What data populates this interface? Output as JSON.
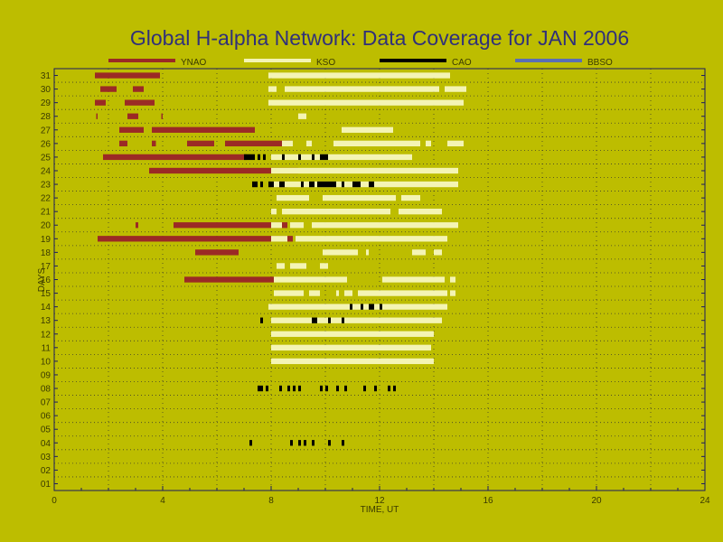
{
  "chart_data": {
    "type": "bar",
    "subtype": "timeline-coverage",
    "title": "Global H-alpha Network: Data Coverage for JAN 2006",
    "xlabel": "TIME, UT",
    "ylabel": "DAYS",
    "xlim": [
      0,
      24
    ],
    "xticks": [
      0,
      4,
      8,
      12,
      16,
      20,
      24
    ],
    "xtick_labels": [
      "0",
      "4",
      "8",
      "12",
      "16",
      "20",
      "24"
    ],
    "days": [
      "01",
      "02",
      "03",
      "04",
      "05",
      "06",
      "07",
      "08",
      "09",
      "10",
      "11",
      "12",
      "13",
      "14",
      "15",
      "16",
      "17",
      "18",
      "19",
      "20",
      "21",
      "22",
      "23",
      "24",
      "25",
      "26",
      "27",
      "28",
      "29",
      "30",
      "31"
    ],
    "grid": "dotted",
    "legend_position": "top",
    "colors": {
      "background": "#bdbd00",
      "axis": "#1c1c60",
      "grid": "#40402a",
      "title": "#30307a"
    },
    "series": [
      {
        "name": "YNAO",
        "color": "#9b2a25",
        "intervals": {
          "31": [
            [
              1.5,
              3.9
            ]
          ],
          "30": [
            [
              1.7,
              2.3
            ],
            [
              2.9,
              3.3
            ]
          ],
          "29": [
            [
              1.5,
              1.9
            ],
            [
              2.6,
              3.7
            ]
          ],
          "28": [
            [
              1.55,
              1.6
            ],
            [
              2.7,
              3.1
            ],
            [
              3.95,
              4.0
            ]
          ],
          "27": [
            [
              2.4,
              3.3
            ],
            [
              3.6,
              7.4
            ]
          ],
          "26": [
            [
              2.4,
              2.7
            ],
            [
              3.6,
              3.75
            ],
            [
              4.9,
              5.9
            ],
            [
              6.3,
              8.8
            ]
          ],
          "25": [
            [
              1.8,
              7.1
            ]
          ],
          "24": [
            [
              3.5,
              9.0
            ]
          ],
          "23": [
            [
              8.2,
              8.6
            ]
          ],
          "20": [
            [
              3.0,
              3.1
            ],
            [
              4.4,
              8.6
            ]
          ],
          "19": [
            [
              1.6,
              8.8
            ]
          ],
          "18": [
            [
              5.2,
              6.8
            ]
          ],
          "16": [
            [
              4.8,
              8.1
            ]
          ]
        }
      },
      {
        "name": "KSO",
        "color": "#f4f4b4",
        "intervals": {
          "31": [
            [
              7.9,
              14.6
            ]
          ],
          "30": [
            [
              7.9,
              8.2
            ],
            [
              8.5,
              14.2
            ],
            [
              14.4,
              15.2
            ]
          ],
          "29": [
            [
              7.9,
              15.1
            ]
          ],
          "28": [
            [
              9.0,
              9.3
            ]
          ],
          "27": [
            [
              10.6,
              12.5
            ]
          ],
          "26": [
            [
              8.4,
              8.8
            ],
            [
              9.3,
              9.5
            ],
            [
              10.3,
              13.5
            ],
            [
              13.7,
              13.9
            ],
            [
              14.5,
              15.1
            ]
          ],
          "25": [
            [
              8.0,
              13.2
            ]
          ],
          "24": [
            [
              8.0,
              14.9
            ]
          ],
          "23": [
            [
              8.0,
              14.9
            ]
          ],
          "22": [
            [
              8.2,
              9.4
            ],
            [
              9.9,
              12.6
            ],
            [
              12.8,
              13.5
            ]
          ],
          "21": [
            [
              8.0,
              8.2
            ],
            [
              8.4,
              12.4
            ],
            [
              12.7,
              14.3
            ]
          ],
          "20": [
            [
              8.0,
              8.4
            ],
            [
              8.7,
              9.2
            ],
            [
              9.5,
              14.9
            ]
          ],
          "19": [
            [
              8.0,
              8.6
            ],
            [
              8.9,
              14.5
            ]
          ],
          "18": [
            [
              9.9,
              11.2
            ],
            [
              11.5,
              11.6
            ],
            [
              13.2,
              13.7
            ],
            [
              14.0,
              14.3
            ]
          ],
          "17": [
            [
              8.2,
              8.5
            ],
            [
              8.7,
              9.3
            ],
            [
              9.8,
              10.1
            ]
          ],
          "16": [
            [
              8.1,
              10.8
            ],
            [
              12.1,
              14.4
            ],
            [
              14.6,
              14.8
            ]
          ],
          "15": [
            [
              8.1,
              9.2
            ],
            [
              9.4,
              9.8
            ],
            [
              10.4,
              10.5
            ],
            [
              10.7,
              11.0
            ],
            [
              11.2,
              14.5
            ],
            [
              14.6,
              14.8
            ]
          ],
          "14": [
            [
              7.9,
              14.5
            ]
          ],
          "13": [
            [
              8.0,
              14.3
            ]
          ],
          "12": [
            [
              8.0,
              14.0
            ]
          ],
          "11": [
            [
              8.0,
              13.9
            ]
          ],
          "10": [
            [
              8.0,
              14.0
            ]
          ]
        }
      },
      {
        "name": "CAO",
        "color": "#000000",
        "intervals": {
          "25": [
            [
              7.0,
              7.4
            ],
            [
              7.5,
              7.6
            ],
            [
              7.7,
              7.8
            ],
            [
              8.4,
              8.5
            ],
            [
              9.0,
              9.1
            ],
            [
              9.5,
              9.6
            ],
            [
              9.8,
              10.1
            ]
          ],
          "23": [
            [
              7.3,
              7.5
            ],
            [
              7.6,
              7.7
            ],
            [
              7.9,
              8.1
            ],
            [
              8.3,
              8.5
            ],
            [
              9.1,
              9.2
            ],
            [
              9.4,
              9.6
            ],
            [
              9.7,
              10.4
            ],
            [
              10.6,
              10.7
            ],
            [
              11.0,
              11.3
            ],
            [
              11.6,
              11.8
            ]
          ],
          "14": [
            [
              10.9,
              11.0
            ],
            [
              11.3,
              11.4
            ],
            [
              11.6,
              11.8
            ],
            [
              12.0,
              12.1
            ]
          ],
          "13": [
            [
              7.6,
              7.7
            ],
            [
              9.5,
              9.7
            ],
            [
              10.1,
              10.2
            ],
            [
              10.6,
              10.7
            ]
          ],
          "08": [
            [
              7.5,
              7.7
            ],
            [
              7.8,
              7.9
            ],
            [
              8.3,
              8.4
            ],
            [
              8.6,
              8.7
            ],
            [
              8.8,
              8.9
            ],
            [
              9.0,
              9.1
            ],
            [
              9.8,
              9.9
            ],
            [
              10.0,
              10.1
            ],
            [
              10.4,
              10.5
            ],
            [
              10.7,
              10.8
            ],
            [
              11.4,
              11.5
            ],
            [
              11.8,
              11.9
            ],
            [
              12.3,
              12.4
            ],
            [
              12.5,
              12.6
            ]
          ],
          "04": [
            [
              7.2,
              7.3
            ],
            [
              8.7,
              8.8
            ],
            [
              9.0,
              9.1
            ],
            [
              9.2,
              9.3
            ],
            [
              9.5,
              9.6
            ],
            [
              10.1,
              10.2
            ],
            [
              10.6,
              10.7
            ]
          ]
        }
      },
      {
        "name": "BBSO",
        "color": "#5a6eb4",
        "intervals": {}
      }
    ]
  }
}
